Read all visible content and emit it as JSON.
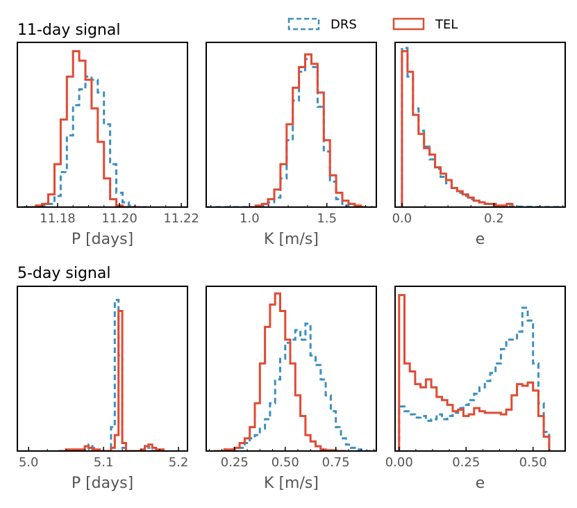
{
  "legend": {
    "entries": [
      {
        "label": "DRS",
        "color": "#3b8fc0",
        "dashed": true
      },
      {
        "label": "TEL",
        "color": "#e04a33",
        "dashed": false
      }
    ]
  },
  "rows": [
    {
      "title": "11-day signal"
    },
    {
      "title": "5-day signal"
    }
  ],
  "chart_data": [
    {
      "type": "histogram",
      "row_title": "11-day signal",
      "xlabel": "P [days]",
      "xlim": [
        11.167,
        11.222
      ],
      "xticks": [
        11.18,
        11.2,
        11.22
      ],
      "tick_labels": [
        "11.18",
        "11.20",
        "11.22"
      ],
      "series": [
        {
          "name": "DRS",
          "edges": [
            11.169,
            11.171,
            11.173,
            11.175,
            11.177,
            11.179,
            11.181,
            11.183,
            11.185,
            11.187,
            11.189,
            11.191,
            11.193,
            11.195,
            11.197,
            11.199,
            11.201,
            11.203,
            11.205,
            11.207,
            11.209
          ],
          "heights": [
            0.0,
            0.0,
            0.0,
            0.01,
            0.02,
            0.07,
            0.22,
            0.45,
            0.64,
            0.74,
            0.82,
            0.8,
            0.72,
            0.52,
            0.27,
            0.09,
            0.03,
            0.01,
            0.0,
            0.0
          ]
        },
        {
          "name": "TEL",
          "edges": [
            11.171,
            11.173,
            11.175,
            11.177,
            11.179,
            11.181,
            11.183,
            11.185,
            11.187,
            11.189,
            11.191,
            11.193,
            11.195,
            11.197,
            11.199,
            11.201,
            11.203,
            11.205,
            11.207
          ],
          "heights": [
            0.0,
            0.01,
            0.02,
            0.08,
            0.27,
            0.55,
            0.82,
            0.98,
            0.92,
            0.8,
            0.62,
            0.41,
            0.18,
            0.05,
            0.01,
            0.0,
            0.0,
            0.0
          ]
        }
      ]
    },
    {
      "type": "histogram",
      "row_title": "11-day signal",
      "xlabel": "K [m/s]",
      "xlim": [
        0.72,
        1.82
      ],
      "xticks": [
        1.0,
        1.5
      ],
      "tick_labels": [
        "1.0",
        "1.5"
      ],
      "series": [
        {
          "name": "DRS",
          "edges": [
            0.72,
            0.76,
            0.8,
            0.84,
            0.88,
            0.92,
            0.96,
            1.0,
            1.04,
            1.08,
            1.12,
            1.16,
            1.2,
            1.24,
            1.28,
            1.32,
            1.36,
            1.4,
            1.44,
            1.48,
            1.52,
            1.56,
            1.6,
            1.64,
            1.68,
            1.72,
            1.76,
            1.8
          ],
          "heights": [
            0.0,
            0.0,
            0.0,
            0.0,
            0.0,
            0.0,
            0.0,
            0.0,
            0.0,
            0.01,
            0.03,
            0.06,
            0.18,
            0.42,
            0.67,
            0.85,
            0.93,
            0.88,
            0.63,
            0.35,
            0.16,
            0.05,
            0.01,
            0.0,
            0.0,
            0.0,
            0.0
          ]
        },
        {
          "name": "TEL",
          "edges": [
            1.0,
            1.04,
            1.08,
            1.12,
            1.16,
            1.2,
            1.24,
            1.28,
            1.32,
            1.36,
            1.4,
            1.44,
            1.48,
            1.52,
            1.56,
            1.6,
            1.64,
            1.68,
            1.72,
            1.76
          ],
          "heights": [
            0.0,
            0.01,
            0.02,
            0.05,
            0.11,
            0.27,
            0.52,
            0.75,
            0.88,
            0.96,
            0.9,
            0.72,
            0.42,
            0.2,
            0.09,
            0.04,
            0.02,
            0.01,
            0.0
          ]
        }
      ]
    },
    {
      "type": "histogram",
      "row_title": "11-day signal",
      "xlabel": "e",
      "xlim": [
        -0.015,
        0.355
      ],
      "xticks": [
        0.0,
        0.2
      ],
      "tick_labels": [
        "0.0",
        "0.2"
      ],
      "series": [
        {
          "name": "DRS",
          "edges": [
            0.0,
            0.012,
            0.024,
            0.036,
            0.048,
            0.06,
            0.072,
            0.084,
            0.096,
            0.108,
            0.12,
            0.132,
            0.144,
            0.156,
            0.168,
            0.18,
            0.192,
            0.204,
            0.216,
            0.228,
            0.24,
            0.252,
            0.264,
            0.276,
            0.288,
            0.3,
            0.312,
            0.324,
            0.336,
            0.348
          ],
          "heights": [
            1.0,
            0.82,
            0.62,
            0.48,
            0.38,
            0.3,
            0.24,
            0.19,
            0.15,
            0.12,
            0.09,
            0.07,
            0.05,
            0.04,
            0.03,
            0.02,
            0.015,
            0.01,
            0.007,
            0.005,
            0.004,
            0.003,
            0.002,
            0.002,
            0.001,
            0.001,
            0.001,
            0.001,
            0.001
          ]
        },
        {
          "name": "TEL",
          "edges": [
            0.0,
            0.012,
            0.024,
            0.036,
            0.048,
            0.06,
            0.072,
            0.084,
            0.096,
            0.108,
            0.12,
            0.132,
            0.144,
            0.156,
            0.168,
            0.18,
            0.192,
            0.204,
            0.216,
            0.228,
            0.24
          ],
          "heights": [
            0.98,
            0.85,
            0.58,
            0.46,
            0.37,
            0.33,
            0.25,
            0.21,
            0.17,
            0.12,
            0.1,
            0.08,
            0.06,
            0.04,
            0.03,
            0.02,
            0.02,
            0.01,
            0.01,
            0.02
          ]
        }
      ]
    },
    {
      "type": "histogram",
      "row_title": "5-day signal",
      "xlabel": "P [days]",
      "xlim": [
        4.985,
        5.212
      ],
      "xticks": [
        5.0,
        5.1,
        5.2
      ],
      "tick_labels": [
        "5.0",
        "5.1",
        "5.2"
      ],
      "series": [
        {
          "name": "DRS",
          "edges": [
            5.07,
            5.075,
            5.08,
            5.085,
            5.09,
            5.095,
            5.1,
            5.105,
            5.11,
            5.115,
            5.12,
            5.125,
            5.13,
            5.135,
            5.14,
            5.145,
            5.15,
            5.155,
            5.16,
            5.165,
            5.17
          ],
          "heights": [
            0.0,
            0.01,
            0.04,
            0.02,
            0.0,
            0.0,
            0.0,
            0.0,
            0.15,
            0.95,
            0.6,
            0.02,
            0.0,
            0.0,
            0.0,
            0.0,
            0.01,
            0.04,
            0.02,
            0.0
          ]
        },
        {
          "name": "TEL",
          "edges": [
            5.04,
            5.05,
            5.06,
            5.07,
            5.075,
            5.08,
            5.085,
            5.09,
            5.095,
            5.1,
            5.105,
            5.11,
            5.115,
            5.12,
            5.125,
            5.13,
            5.135,
            5.14,
            5.15,
            5.155,
            5.16,
            5.165,
            5.17,
            5.18
          ],
          "heights": [
            0.0,
            0.01,
            0.01,
            0.01,
            0.03,
            0.02,
            0.01,
            0.01,
            0.0,
            0.0,
            0.0,
            0.02,
            0.1,
            0.88,
            0.05,
            0.0,
            0.0,
            0.0,
            0.01,
            0.03,
            0.04,
            0.02,
            0.01
          ]
        }
      ]
    },
    {
      "type": "histogram",
      "row_title": "5-day signal",
      "xlabel": "K [m/s]",
      "xlim": [
        0.11,
        0.95
      ],
      "xticks": [
        0.25,
        0.5,
        0.75
      ],
      "tick_labels": [
        "0.25",
        "0.50",
        "0.75"
      ],
      "series": [
        {
          "name": "DRS",
          "edges": [
            0.15,
            0.2,
            0.25,
            0.3,
            0.325,
            0.35,
            0.375,
            0.4,
            0.425,
            0.45,
            0.475,
            0.5,
            0.525,
            0.55,
            0.575,
            0.6,
            0.625,
            0.65,
            0.675,
            0.7,
            0.725,
            0.75,
            0.775,
            0.8,
            0.825,
            0.85,
            0.875,
            0.9,
            0.95
          ],
          "heights": [
            0.0,
            0.01,
            0.02,
            0.05,
            0.08,
            0.1,
            0.14,
            0.2,
            0.3,
            0.45,
            0.58,
            0.68,
            0.7,
            0.76,
            0.7,
            0.8,
            0.6,
            0.54,
            0.45,
            0.35,
            0.25,
            0.15,
            0.08,
            0.04,
            0.02,
            0.01,
            0.005,
            0.0
          ]
        },
        {
          "name": "TEL",
          "edges": [
            0.15,
            0.2,
            0.25,
            0.275,
            0.3,
            0.325,
            0.35,
            0.375,
            0.4,
            0.425,
            0.45,
            0.475,
            0.5,
            0.525,
            0.55,
            0.575,
            0.6,
            0.625,
            0.65,
            0.675,
            0.7,
            0.75,
            0.8
          ],
          "heights": [
            0.0,
            0.01,
            0.02,
            0.05,
            0.08,
            0.15,
            0.3,
            0.55,
            0.78,
            0.92,
            0.99,
            0.88,
            0.7,
            0.55,
            0.35,
            0.22,
            0.1,
            0.06,
            0.03,
            0.01,
            0.005,
            0.0
          ]
        }
      ]
    },
    {
      "type": "histogram",
      "row_title": "5-day signal",
      "xlabel": "e",
      "xlim": [
        -0.015,
        0.62
      ],
      "xticks": [
        0.0,
        0.25,
        0.5
      ],
      "tick_labels": [
        "0.00",
        "0.25",
        "0.50"
      ],
      "series": [
        {
          "name": "DRS",
          "edges": [
            0.0,
            0.02,
            0.04,
            0.06,
            0.08,
            0.1,
            0.12,
            0.14,
            0.16,
            0.18,
            0.2,
            0.22,
            0.24,
            0.26,
            0.28,
            0.3,
            0.32,
            0.34,
            0.36,
            0.38,
            0.4,
            0.42,
            0.44,
            0.46,
            0.48,
            0.5,
            0.52,
            0.54,
            0.56
          ],
          "heights": [
            0.28,
            0.25,
            0.23,
            0.21,
            0.22,
            0.19,
            0.2,
            0.23,
            0.2,
            0.22,
            0.24,
            0.27,
            0.29,
            0.32,
            0.36,
            0.4,
            0.44,
            0.49,
            0.55,
            0.64,
            0.7,
            0.7,
            0.75,
            0.9,
            0.82,
            0.55,
            0.3,
            0.12
          ]
        },
        {
          "name": "TEL",
          "edges": [
            0.0,
            0.02,
            0.04,
            0.06,
            0.08,
            0.1,
            0.12,
            0.14,
            0.16,
            0.18,
            0.2,
            0.22,
            0.24,
            0.26,
            0.28,
            0.3,
            0.32,
            0.34,
            0.36,
            0.38,
            0.4,
            0.42,
            0.44,
            0.46,
            0.48,
            0.5,
            0.52,
            0.54,
            0.56
          ],
          "heights": [
            0.98,
            0.55,
            0.5,
            0.42,
            0.4,
            0.45,
            0.4,
            0.34,
            0.32,
            0.29,
            0.25,
            0.26,
            0.22,
            0.23,
            0.27,
            0.25,
            0.24,
            0.24,
            0.24,
            0.23,
            0.26,
            0.35,
            0.42,
            0.41,
            0.43,
            0.38,
            0.22,
            0.09
          ]
        }
      ]
    }
  ]
}
